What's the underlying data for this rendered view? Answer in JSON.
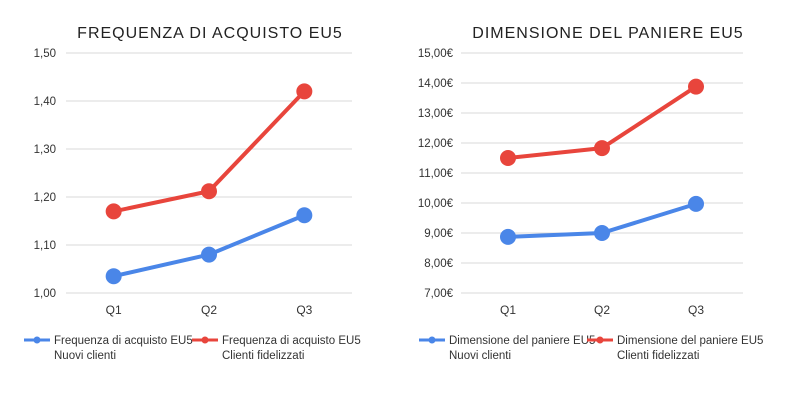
{
  "chart_data": [
    {
      "type": "line",
      "title": "FREQUENZA DI ACQUISTO EU5",
      "categories": [
        "Q1",
        "Q2",
        "Q3"
      ],
      "yticks": [
        "1,00",
        "1,10",
        "1,20",
        "1,30",
        "1,40",
        "1,50"
      ],
      "ylim": [
        1.0,
        1.5
      ],
      "grid": true,
      "legend_position": "bottom",
      "series": [
        {
          "name": "Frequenza di acquisto EU5 Nuovi clienti",
          "name_lines": [
            "Frequenza di acquisto EU5",
            "Nuovi clienti"
          ],
          "color": "#4a86e8",
          "values": [
            1.035,
            1.08,
            1.162
          ]
        },
        {
          "name": "Frequenza di acquisto EU5 Clienti fidelizzati",
          "name_lines": [
            "Frequenza di acquisto EU5",
            "Clienti fidelizzati"
          ],
          "color": "#e8453c",
          "values": [
            1.17,
            1.212,
            1.42
          ]
        }
      ]
    },
    {
      "type": "line",
      "title": "DIMENSIONE DEL PANIERE EU5",
      "categories": [
        "Q1",
        "Q2",
        "Q3"
      ],
      "yticks": [
        "7,00€",
        "8,00€",
        "9,00€",
        "10,00€",
        "11,00€",
        "12,00€",
        "13,00€",
        "14,00€",
        "15,00€"
      ],
      "ylim": [
        7,
        15
      ],
      "grid": true,
      "legend_position": "bottom",
      "series": [
        {
          "name": "Dimensione del paniere EU5 Nuovi clienti",
          "name_lines": [
            "Dimensione del paniere EU5",
            "Nuovi clienti"
          ],
          "color": "#4a86e8",
          "values": [
            8.87,
            9.0,
            9.97
          ]
        },
        {
          "name": "Dimensione del paniere EU5 Clienti fidelizzati",
          "name_lines": [
            "Dimensione del paniere EU5",
            "Clienti fidelizzati"
          ],
          "color": "#e8453c",
          "values": [
            11.5,
            11.83,
            13.88
          ]
        }
      ]
    }
  ]
}
